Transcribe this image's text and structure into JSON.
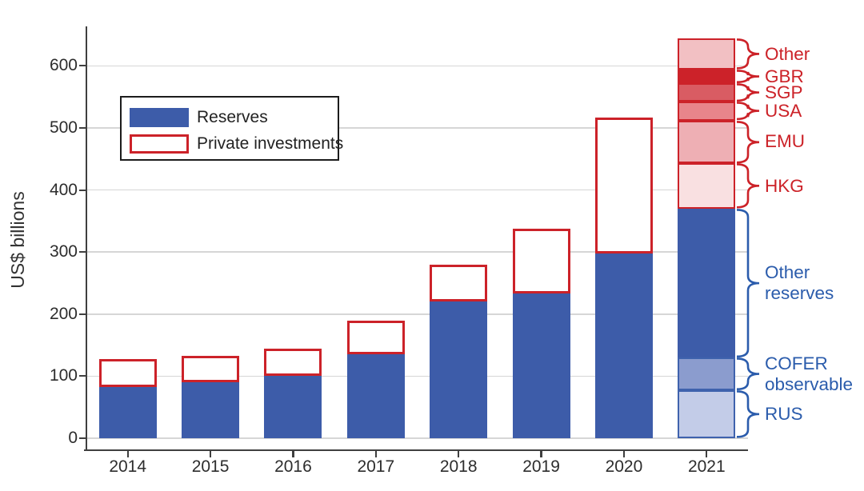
{
  "ylabel": "US$ billions",
  "legend": {
    "items": [
      {
        "label": "Reserves",
        "swatch": "filled",
        "color": "#3d5ca9"
      },
      {
        "label": "Private investments",
        "swatch": "outline",
        "color": "#cc2229"
      }
    ]
  },
  "chart_data": {
    "type": "bar",
    "stacked": true,
    "title": "",
    "xlabel": "",
    "ylabel": "US$ billions",
    "ylim": [
      0,
      663
    ],
    "yticks": [
      0,
      100,
      200,
      300,
      400,
      500,
      600
    ],
    "grid": "horizontal",
    "legend_position": "upper-left-inside",
    "categories": [
      "2014",
      "2015",
      "2016",
      "2017",
      "2018",
      "2019",
      "2020",
      "2021"
    ],
    "series": [
      {
        "name": "Reserves",
        "style": "filled",
        "color": "#3d5ca9",
        "values": [
          83,
          90,
          101,
          135,
          220,
          233,
          298,
          370
        ]
      },
      {
        "name": "Private investments",
        "style": "outline",
        "color": "#cc2229",
        "values": [
          45,
          43,
          43,
          55,
          59,
          104,
          219,
          274
        ]
      }
    ],
    "breakdown_year": "2021",
    "breakdown_2021": {
      "reserves_segments_bottom_up": [
        {
          "label": "RUS",
          "lines": [
            "RUS"
          ],
          "value": 77,
          "fill": "#c3cce8",
          "border": "#3f62ad",
          "label_color": "#2b5cac"
        },
        {
          "label": "COFER observable",
          "lines": [
            "COFER",
            "observable"
          ],
          "value": 53,
          "fill": "#8b9cce",
          "border": "#3f62ad",
          "label_color": "#2b5cac"
        },
        {
          "label": "Other reserves",
          "lines": [
            "Other",
            "reserves"
          ],
          "value": 240,
          "fill": "#3d5ca9",
          "border": "#3d5ca9",
          "label_color": "#2b5cac"
        }
      ],
      "private_segments_bottom_up": [
        {
          "label": "HKG",
          "lines": [
            "HKG"
          ],
          "value": 73,
          "fill": "#f9e0e1",
          "border": "#cc2229",
          "label_color": "#cc2228"
        },
        {
          "label": "EMU",
          "lines": [
            "EMU"
          ],
          "value": 69,
          "fill": "#eeafb4",
          "border": "#cc2229",
          "label_color": "#cc2228"
        },
        {
          "label": "USA",
          "lines": [
            "USA"
          ],
          "value": 30,
          "fill": "#e8858b",
          "border": "#cc2229",
          "label_color": "#cc2228"
        },
        {
          "label": "SGP",
          "lines": [
            "SGP"
          ],
          "value": 30,
          "fill": "#d95c63",
          "border": "#cc2229",
          "label_color": "#cc2228"
        },
        {
          "label": "GBR",
          "lines": [
            "GBR"
          ],
          "value": 22,
          "fill": "#cc2229",
          "border": "#cc2229",
          "label_color": "#cc2228"
        },
        {
          "label": "Other",
          "lines": [
            "Other"
          ],
          "value": 50,
          "fill": "#f2c0c3",
          "border": "#cc2229",
          "label_color": "#cc2228"
        }
      ]
    }
  }
}
